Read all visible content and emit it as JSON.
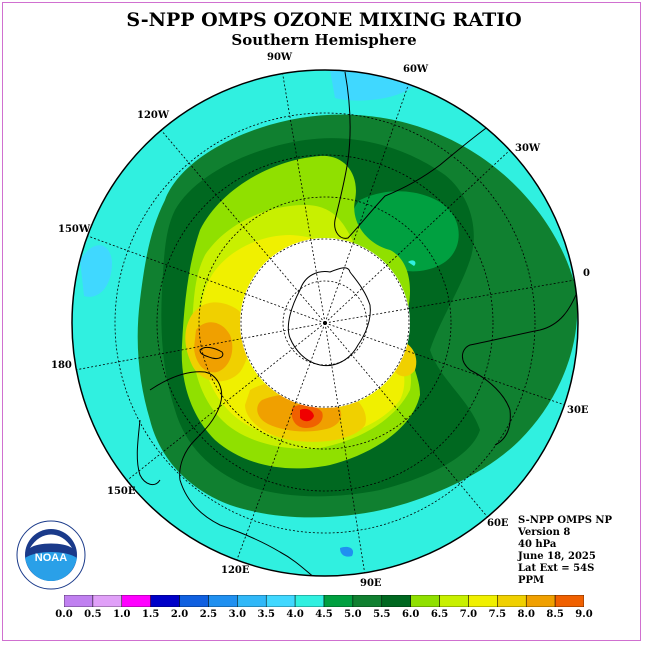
{
  "title": "S-NPP OMPS OZONE MIXING RATIO",
  "subtitle": "Southern Hemisphere",
  "longitude_labels": [
    "90W",
    "60W",
    "30W",
    "0",
    "30E",
    "60E",
    "90E",
    "120E",
    "150E",
    "180",
    "150W",
    "120W"
  ],
  "info": {
    "instrument": "S-NPP OMPS NP",
    "version": "Version 8",
    "level": "40 hPa",
    "date": "June 18, 2025",
    "lat_ext": "Lat Ext = 54S",
    "units": "PPM"
  },
  "logo_text": "NOAA",
  "colorbar": {
    "ticks": [
      "0.0",
      "0.5",
      "1.0",
      "1.5",
      "2.0",
      "2.5",
      "3.0",
      "3.5",
      "4.0",
      "4.5",
      "5.0",
      "5.5",
      "6.0",
      "6.5",
      "7.0",
      "7.5",
      "8.0",
      "8.5",
      "9.0"
    ],
    "colors": [
      "#c080f0",
      "#e0a0f8",
      "#ff00ff",
      "#0000c8",
      "#1060e0",
      "#2090f0",
      "#30b8f8",
      "#40d8ff",
      "#30f0e0",
      "#00a040",
      "#108030",
      "#006820",
      "#90e000",
      "#c8f000",
      "#f0f000",
      "#f0d000",
      "#f0a000",
      "#f06000",
      "#f00000",
      "#805030"
    ]
  }
}
